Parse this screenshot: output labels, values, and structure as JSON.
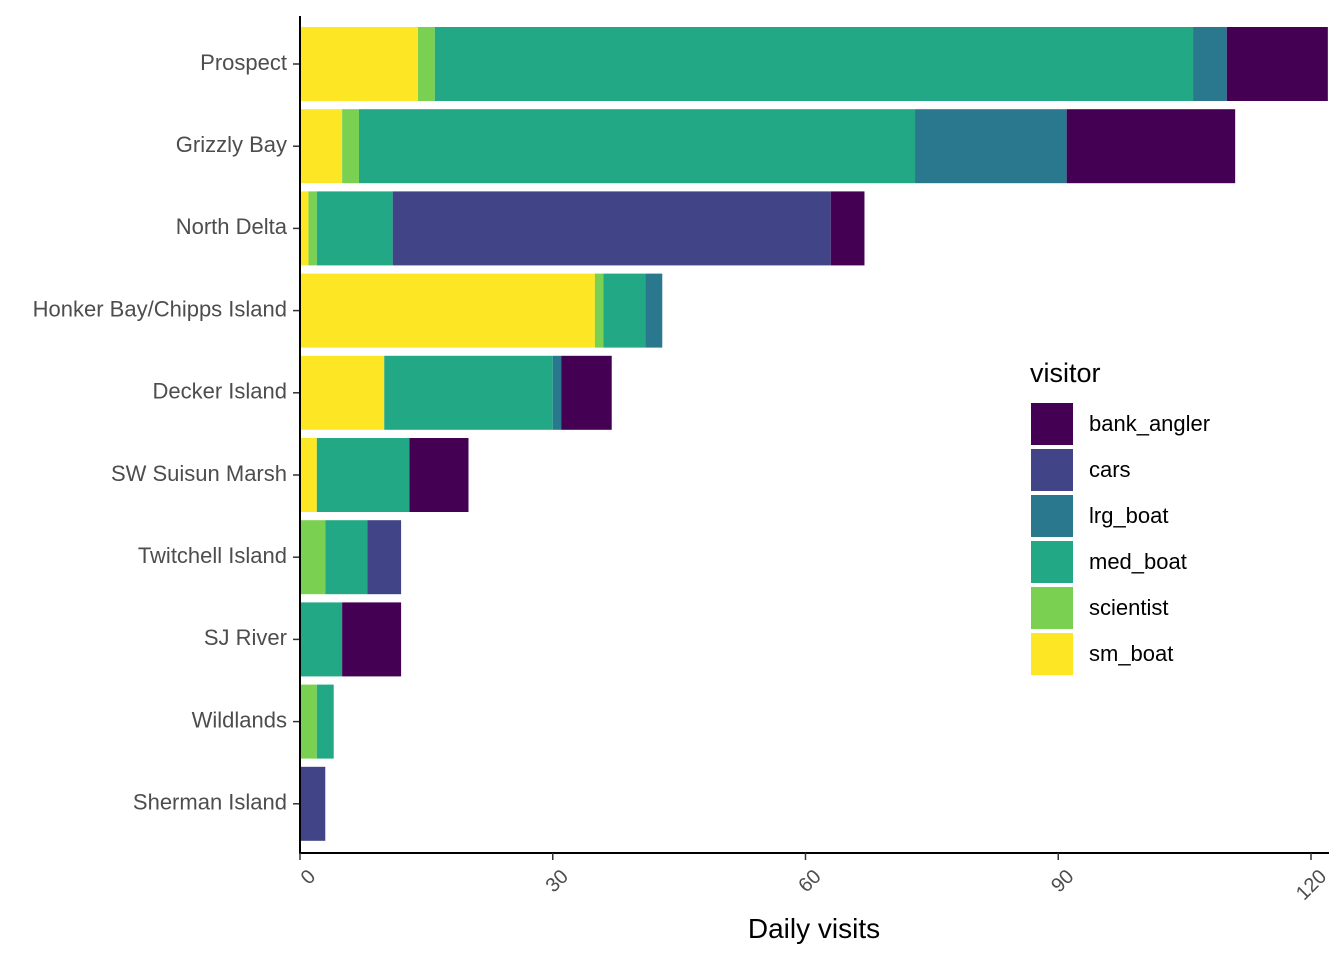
{
  "chart_data": {
    "type": "bar",
    "orientation": "horizontal",
    "stacked": true,
    "categories": [
      "Prospect",
      "Grizzly Bay",
      "North Delta",
      "Honker Bay/Chipps Island",
      "Decker Island",
      "SW Suisun Marsh",
      "Twitchell Island",
      "SJ River",
      "Wildlands",
      "Sherman Island"
    ],
    "stack_order": [
      "sm_boat",
      "scientist",
      "med_boat",
      "lrg_boat",
      "cars",
      "bank_angler"
    ],
    "series": [
      {
        "name": "bank_angler",
        "color": "#440154",
        "values": [
          12,
          20,
          4,
          0,
          6,
          7,
          0,
          7,
          0,
          0
        ]
      },
      {
        "name": "cars",
        "color": "#414487",
        "values": [
          0,
          0,
          52,
          0,
          0,
          0,
          4,
          0,
          0,
          3
        ]
      },
      {
        "name": "lrg_boat",
        "color": "#2A788E",
        "values": [
          4,
          18,
          0,
          2,
          1,
          0,
          0,
          0,
          0,
          0
        ]
      },
      {
        "name": "med_boat",
        "color": "#22A884",
        "values": [
          90,
          66,
          9,
          5,
          20,
          11,
          5,
          5,
          2,
          0
        ]
      },
      {
        "name": "scientist",
        "color": "#7AD151",
        "values": [
          2,
          2,
          1,
          1,
          0,
          0,
          3,
          0,
          2,
          0
        ]
      },
      {
        "name": "sm_boat",
        "color": "#FDE725",
        "values": [
          14,
          5,
          1,
          35,
          10,
          2,
          0,
          0,
          0,
          0
        ]
      }
    ],
    "xlim": [
      0,
      122
    ],
    "x_ticks": [
      0,
      30,
      60,
      90,
      120
    ],
    "xlabel": "Daily visits",
    "ylabel": "",
    "title": "",
    "legend": {
      "title": "visitor",
      "position": "right"
    },
    "grid": false
  }
}
